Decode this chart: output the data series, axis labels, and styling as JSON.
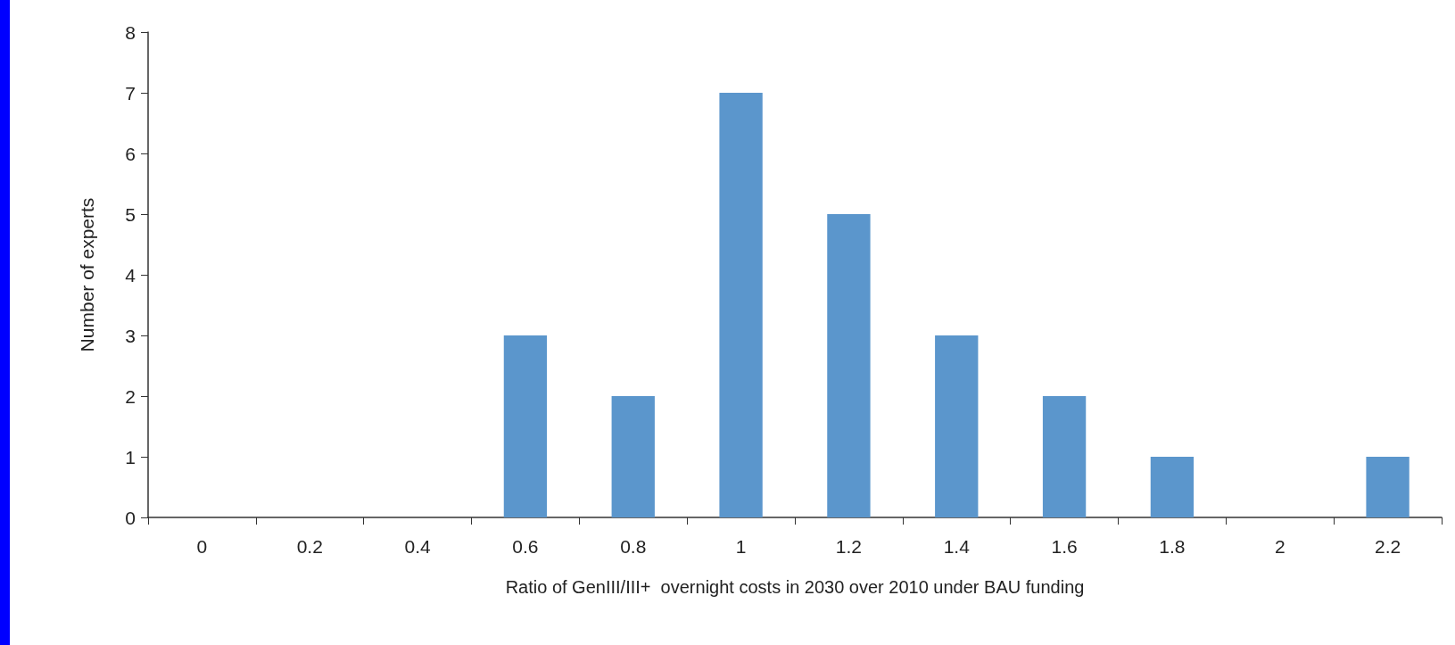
{
  "chart_data": {
    "type": "bar",
    "xlabel": "Ratio of GenIII/III+  overnight costs in 2030 over 2010 under BAU funding",
    "ylabel": "Number of experts",
    "categories": [
      "0",
      "0.2",
      "0.4",
      "0.6",
      "0.8",
      "1",
      "1.2",
      "1.4",
      "1.6",
      "1.8",
      "2",
      "2.2"
    ],
    "values": [
      0,
      0,
      0,
      3,
      2,
      7,
      5,
      3,
      2,
      1,
      0,
      1
    ],
    "color": "#5b96cc",
    "ylim": [
      0,
      8
    ],
    "yticks": [
      0,
      1,
      2,
      3,
      4,
      5,
      6,
      7,
      8
    ],
    "grid": false
  }
}
